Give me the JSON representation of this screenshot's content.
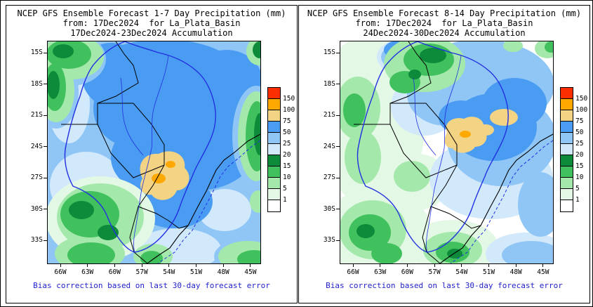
{
  "figure": {
    "background": "#ffffff",
    "border_color": "#000000"
  },
  "panels": [
    {
      "id": "week1",
      "title": "NCEP GFS Ensemble Forecast 1-7 Day Precipitation (mm)",
      "subtitle": "from: 17Dec2024  for La_Plata_Basin",
      "period": "17Dec2024-23Dec2024 Accumulation",
      "caption": "Bias correction based on last 30-day forecast error"
    },
    {
      "id": "week2",
      "title": "NCEP GFS Ensemble Forecast 8-14 Day Precipitation (mm)",
      "subtitle": "from: 17Dec2024  for La_Plata_Basin",
      "period": "24Dec2024-30Dec2024 Accumulation",
      "caption": "Bias correction based on last 30-day forecast error"
    }
  ],
  "axes": {
    "lat_labels": [
      "15S",
      "18S",
      "21S",
      "24S",
      "27S",
      "30S",
      "33S"
    ],
    "lon_labels": [
      "66W",
      "63W",
      "60W",
      "57W",
      "54W",
      "51W",
      "48W",
      "45W"
    ]
  },
  "legend": {
    "units": "mm",
    "boundary_labels": [
      "150",
      "100",
      "75",
      "50",
      "25",
      "20",
      "15",
      "10",
      "5",
      "1"
    ],
    "colors_top_to_bottom": [
      "#fb2e00",
      "#ffa800",
      "#f3d384",
      "#4a9cf2",
      "#8fc6f6",
      "#d2e9fc",
      "#0d8a3a",
      "#41c15e",
      "#a4e9ab",
      "#e4f8e6",
      "#ffffff"
    ]
  },
  "map": {
    "frame_color": "#000000",
    "country_border_color": "#000000",
    "basin_outline_color": "#2230e0",
    "caption_color": "#2222cc"
  },
  "chart_data": {
    "type": "heatmap",
    "subtype": "filled-contour precipitation forecast maps, 2 panels (GrADS style)",
    "x": {
      "label": "longitude",
      "ticks": [
        "66W",
        "63W",
        "60W",
        "57W",
        "54W",
        "51W",
        "48W",
        "45W"
      ]
    },
    "y": {
      "label": "latitude",
      "ticks": [
        "15S",
        "18S",
        "21S",
        "24S",
        "27S",
        "30S",
        "33S"
      ]
    },
    "contour_levels_mm": [
      1,
      5,
      10,
      15,
      20,
      25,
      50,
      75,
      100,
      150
    ],
    "level_colors": [
      "#ffffff",
      "#e4f8e6",
      "#a4e9ab",
      "#41c15e",
      "#0d8a3a",
      "#d2e9fc",
      "#8fc6f6",
      "#4a9cf2",
      "#f3d384",
      "#ffa800",
      "#fb2e00"
    ],
    "panels": [
      {
        "title": "NCEP GFS Ensemble Forecast 1-7 Day Precipitation (mm)",
        "period": "17Dec2024-23Dec2024 Accumulation",
        "dominant_field": "25-75 mm (blues) over most of the domain",
        "maximum": "75-100 mm gold area with small 100-150 mm orange cores near 54W-56W, 25S-28S",
        "minima": "1-20 mm greens along NW corner, W edge, SW quadrant, E ocean strip and SE corner"
      },
      {
        "title": "NCEP GFS Ensemble Forecast 8-14 Day Precipitation (mm)",
        "period": "24Dec2024-30Dec2024 Accumulation",
        "dominant_field": "under 25 mm (white/greens) over W and S; 25-75 mm (blues) over NE half",
        "maximum": "75-100 mm gold patches near 53W-49W, 21S-24S",
        "minima": "white < 1 mm over central-west and south"
      }
    ]
  }
}
